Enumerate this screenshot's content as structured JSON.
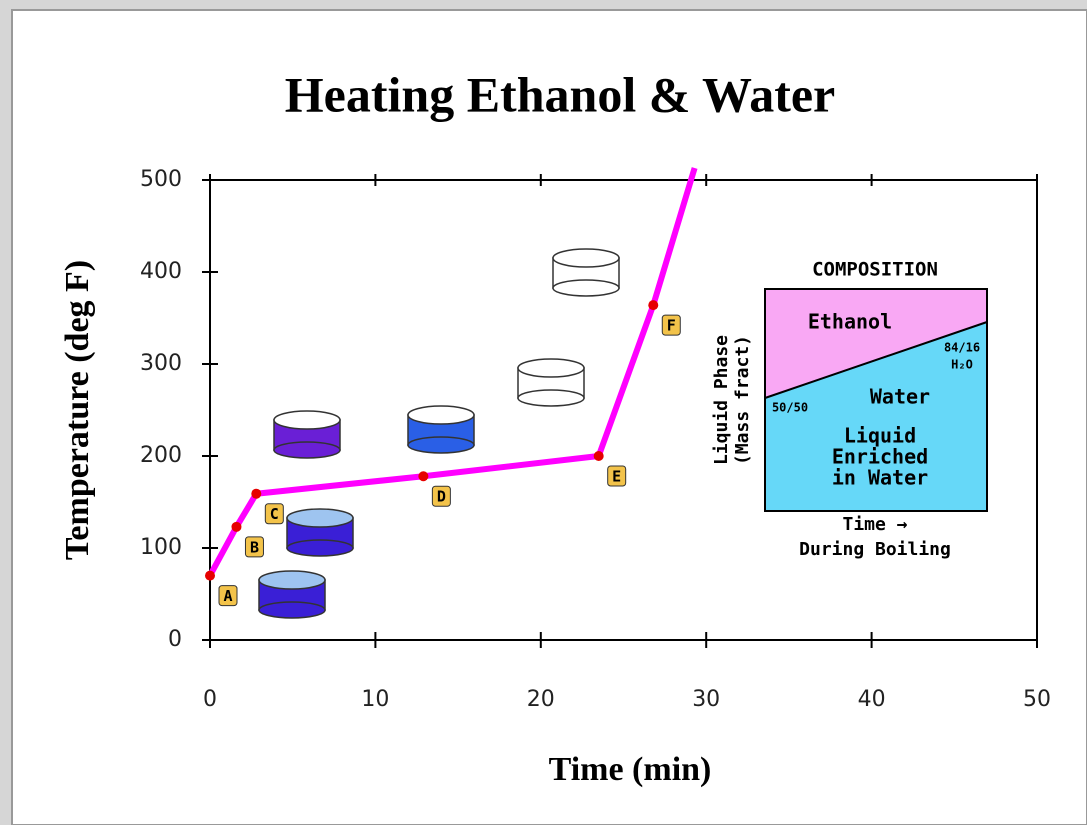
{
  "chart_data": {
    "type": "line",
    "title": "Heating Ethanol & Water",
    "x_label": "Time (min)",
    "y_label": "Temperature (deg F)",
    "x": [
      0,
      1.6,
      2.8,
      12.9,
      23.5,
      26.8,
      29.3
    ],
    "series": [
      {
        "color": "#ff00ff",
        "marker_color": "#e60000",
        "values": [
          70,
          123,
          159,
          178,
          200,
          364,
          513
        ]
      }
    ],
    "point_labels": [
      "A",
      "B",
      "C",
      "D",
      "E",
      "F",
      null
    ],
    "xlim": [
      0,
      50
    ],
    "xticks": [
      0,
      10,
      20,
      30,
      40,
      50
    ],
    "ylim": [
      0,
      500
    ],
    "yticks": [
      0,
      100,
      200,
      300,
      400,
      500
    ],
    "inset": {
      "title": "COMPOSITION",
      "top_label": "Ethanol",
      "bottom_label": "Water",
      "end_ratio": "84/16",
      "end_species": "H₂O",
      "start_ratio": "50/50",
      "note_lines": [
        "Liquid",
        "Enriched",
        "in Water"
      ],
      "y_label_lines": [
        "Liquid Phase",
        "(Mass fract)"
      ],
      "x_label_lines": [
        "Time →",
        "During Boiling"
      ]
    }
  }
}
